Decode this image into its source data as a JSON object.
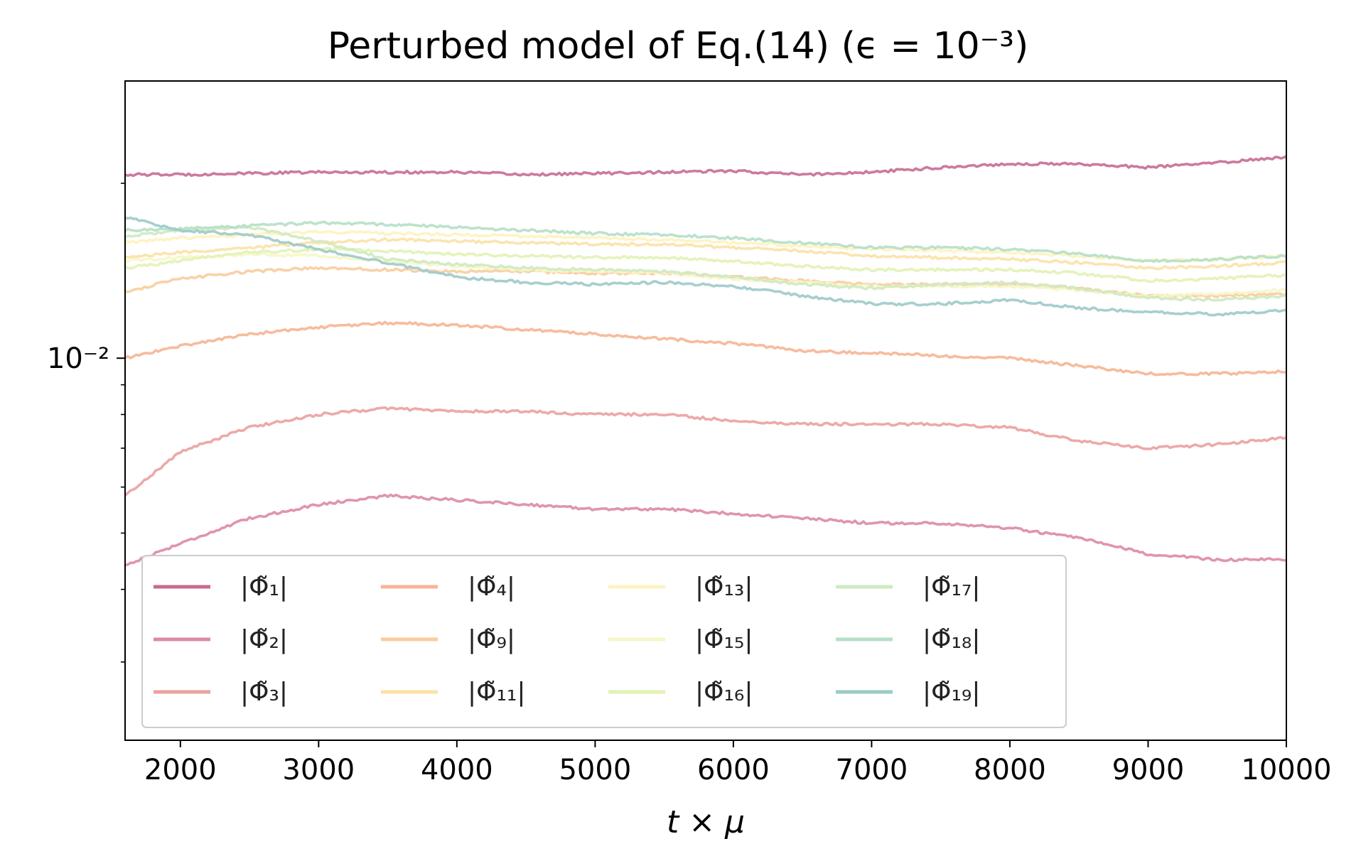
{
  "chart_data": {
    "type": "line",
    "title": "Perturbed model of Eq.(14) (ϵ = 10⁻³)",
    "xlabel": "t × μ",
    "ylabel": "",
    "xlim": [
      1600,
      10000
    ],
    "ylim": [
      0.0022,
      0.03
    ],
    "yscale": "log",
    "xticks": [
      2000,
      3000,
      4000,
      5000,
      6000,
      7000,
      8000,
      9000,
      10000
    ],
    "xtick_labels": [
      "2000",
      "3000",
      "4000",
      "5000",
      "6000",
      "7000",
      "8000",
      "9000",
      "10000"
    ],
    "ytick_major": [
      0.01
    ],
    "ytick_major_labels": [
      "10⁻²"
    ],
    "ytick_minor": [
      0.003,
      0.004,
      0.005,
      0.006,
      0.007,
      0.008,
      0.009,
      0.02
    ],
    "legend_position": "lower-left",
    "legend_columns": 4,
    "x": [
      1600,
      2000,
      2500,
      3000,
      3500,
      4000,
      4500,
      5000,
      5500,
      6000,
      6500,
      7000,
      7500,
      8000,
      8500,
      9000,
      9500,
      10000
    ],
    "series": [
      {
        "name": "|Φ̃₁|",
        "color": "#c76b92",
        "values": [
          0.0207,
          0.0207,
          0.0208,
          0.0209,
          0.0209,
          0.0209,
          0.0207,
          0.0208,
          0.0209,
          0.021,
          0.0207,
          0.0209,
          0.0213,
          0.0216,
          0.0216,
          0.0213,
          0.0217,
          0.0222
        ]
      },
      {
        "name": "|Φ̃₂|",
        "color": "#dc8aa4",
        "values": [
          0.0044,
          0.0048,
          0.0053,
          0.0056,
          0.0058,
          0.0057,
          0.0056,
          0.0055,
          0.0055,
          0.0054,
          0.0053,
          0.0052,
          0.0052,
          0.0051,
          0.0049,
          0.0046,
          0.0045,
          0.0045
        ]
      },
      {
        "name": "|Φ̃₃|",
        "color": "#eba0a0",
        "values": [
          0.0058,
          0.0069,
          0.0076,
          0.008,
          0.0082,
          0.0081,
          0.0081,
          0.008,
          0.008,
          0.0078,
          0.0077,
          0.0077,
          0.0077,
          0.0076,
          0.0072,
          0.007,
          0.0071,
          0.0073
        ]
      },
      {
        "name": "|Φ̃₄|",
        "color": "#f6b494",
        "values": [
          0.01,
          0.0105,
          0.011,
          0.0113,
          0.0115,
          0.0114,
          0.0112,
          0.011,
          0.0108,
          0.0106,
          0.0103,
          0.0102,
          0.0101,
          0.01,
          0.0097,
          0.0094,
          0.0094,
          0.0095
        ]
      },
      {
        "name": "|Φ̃₉|",
        "color": "#f8cc9e",
        "values": [
          0.013,
          0.0137,
          0.0141,
          0.0143,
          0.0142,
          0.0141,
          0.0141,
          0.014,
          0.014,
          0.0138,
          0.0136,
          0.0134,
          0.0134,
          0.0134,
          0.0132,
          0.0128,
          0.0128,
          0.0129
        ]
      },
      {
        "name": "|Φ̃₁₁|",
        "color": "#fbe1a7",
        "values": [
          0.0149,
          0.0152,
          0.0155,
          0.0158,
          0.016,
          0.0159,
          0.0158,
          0.0157,
          0.0157,
          0.0155,
          0.0153,
          0.015,
          0.0149,
          0.0148,
          0.0146,
          0.0143,
          0.0144,
          0.0146
        ]
      },
      {
        "name": "|Φ̃₁₃|",
        "color": "#fdf3bf",
        "values": [
          0.0158,
          0.0161,
          0.0163,
          0.0165,
          0.0164,
          0.0163,
          0.0162,
          0.0161,
          0.016,
          0.0158,
          0.0156,
          0.0154,
          0.0153,
          0.0152,
          0.015,
          0.0147,
          0.0148,
          0.015
        ]
      },
      {
        "name": "|Φ̃₁₅|",
        "color": "#f6f6c8",
        "values": [
          0.0147,
          0.0149,
          0.0151,
          0.015,
          0.0147,
          0.0144,
          0.0142,
          0.0141,
          0.014,
          0.0137,
          0.0135,
          0.0133,
          0.0133,
          0.0133,
          0.0131,
          0.0128,
          0.0129,
          0.0131
        ]
      },
      {
        "name": "|Φ̃₁₆|",
        "color": "#e2f2b4",
        "values": [
          0.0143,
          0.0147,
          0.0152,
          0.0154,
          0.0153,
          0.0151,
          0.015,
          0.0149,
          0.0149,
          0.0147,
          0.0144,
          0.0142,
          0.0142,
          0.0142,
          0.014,
          0.0136,
          0.0137,
          0.0139
        ]
      },
      {
        "name": "|Φ̃₁₇|",
        "color": "#cfe9c0",
        "values": [
          0.0162,
          0.0166,
          0.0168,
          0.0159,
          0.0148,
          0.0145,
          0.0143,
          0.0142,
          0.0141,
          0.0138,
          0.0134,
          0.0132,
          0.0134,
          0.0135,
          0.0132,
          0.0127,
          0.0126,
          0.0128
        ]
      },
      {
        "name": "|Φ̃₁₈|",
        "color": "#b5dfc7",
        "values": [
          0.0166,
          0.0167,
          0.0169,
          0.0171,
          0.017,
          0.0168,
          0.0166,
          0.0164,
          0.0163,
          0.0161,
          0.0158,
          0.0155,
          0.0155,
          0.0154,
          0.0151,
          0.0147,
          0.0148,
          0.015
        ]
      },
      {
        "name": "|Φ̃₁₉|",
        "color": "#9ccac8",
        "values": [
          0.0175,
          0.0166,
          0.0163,
          0.0154,
          0.0146,
          0.0138,
          0.0135,
          0.0134,
          0.0135,
          0.0133,
          0.0128,
          0.0124,
          0.0124,
          0.0126,
          0.0122,
          0.012,
          0.0119,
          0.0121
        ]
      }
    ]
  }
}
